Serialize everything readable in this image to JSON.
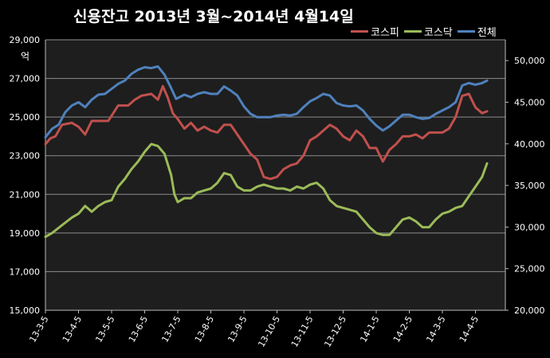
{
  "chart_data": {
    "type": "line",
    "title": "신용잔고 2013년 3월~2014년 4월14일",
    "unit_label": "억",
    "y_left": {
      "min": 15000,
      "max": 29000,
      "ticks": [
        "15,000",
        "17,000",
        "19,000",
        "21,000",
        "23,000",
        "25,000",
        "27,000",
        "29,000"
      ]
    },
    "y_right": {
      "min": 20000,
      "max": 52500,
      "ticks": [
        "20,000",
        "25,000",
        "30,000",
        "35,000",
        "40,000",
        "45,000",
        "50,000"
      ]
    },
    "x_ticks": [
      "13-3-5",
      "13-4-5",
      "13-5-5",
      "13-6-5",
      "13-7-5",
      "13-8-5",
      "13-9-5",
      "13-10-5",
      "13-11-5",
      "13-12-5",
      "14-1-5",
      "14-2-5",
      "14-3-5",
      "14-4-5"
    ],
    "grid": true,
    "legend_position": "top-right",
    "series": [
      {
        "name": "코스피",
        "axis": "left",
        "color": "#c0504d",
        "points": [
          [
            0,
            23600
          ],
          [
            0.15,
            23900
          ],
          [
            0.3,
            24000
          ],
          [
            0.5,
            24600
          ],
          [
            0.8,
            24700
          ],
          [
            1.0,
            24500
          ],
          [
            1.2,
            24100
          ],
          [
            1.4,
            24800
          ],
          [
            1.7,
            24800
          ],
          [
            1.9,
            24800
          ],
          [
            2.2,
            25600
          ],
          [
            2.5,
            25600
          ],
          [
            2.7,
            25900
          ],
          [
            2.9,
            26100
          ],
          [
            3.2,
            26200
          ],
          [
            3.4,
            25900
          ],
          [
            3.55,
            26600
          ],
          [
            3.7,
            26000
          ],
          [
            3.85,
            25200
          ],
          [
            4.0,
            24900
          ],
          [
            4.2,
            24400
          ],
          [
            4.4,
            24700
          ],
          [
            4.6,
            24300
          ],
          [
            4.8,
            24500
          ],
          [
            5.0,
            24300
          ],
          [
            5.2,
            24200
          ],
          [
            5.4,
            24600
          ],
          [
            5.6,
            24600
          ],
          [
            5.8,
            24100
          ],
          [
            6.0,
            23600
          ],
          [
            6.2,
            23100
          ],
          [
            6.4,
            22800
          ],
          [
            6.6,
            21900
          ],
          [
            6.8,
            21800
          ],
          [
            7.0,
            21900
          ],
          [
            7.2,
            22300
          ],
          [
            7.4,
            22500
          ],
          [
            7.6,
            22600
          ],
          [
            7.8,
            23000
          ],
          [
            8.0,
            23800
          ],
          [
            8.2,
            24000
          ],
          [
            8.4,
            24300
          ],
          [
            8.6,
            24600
          ],
          [
            8.8,
            24400
          ],
          [
            9.0,
            24000
          ],
          [
            9.2,
            23800
          ],
          [
            9.4,
            24300
          ],
          [
            9.6,
            24000
          ],
          [
            9.8,
            23400
          ],
          [
            10.0,
            23400
          ],
          [
            10.2,
            22700
          ],
          [
            10.4,
            23300
          ],
          [
            10.6,
            23600
          ],
          [
            10.8,
            24000
          ],
          [
            11.0,
            24000
          ],
          [
            11.2,
            24100
          ],
          [
            11.4,
            23900
          ],
          [
            11.6,
            24200
          ],
          [
            11.8,
            24200
          ],
          [
            12.0,
            24200
          ],
          [
            12.2,
            24400
          ],
          [
            12.4,
            25000
          ],
          [
            12.6,
            26100
          ],
          [
            12.8,
            26200
          ],
          [
            13.0,
            25500
          ],
          [
            13.2,
            25200
          ],
          [
            13.35,
            25300
          ]
        ]
      },
      {
        "name": "코스닥",
        "axis": "left",
        "color": "#9bbb59",
        "points": [
          [
            0,
            18800
          ],
          [
            0.2,
            19000
          ],
          [
            0.5,
            19400
          ],
          [
            0.8,
            19800
          ],
          [
            1.0,
            20000
          ],
          [
            1.2,
            20400
          ],
          [
            1.4,
            20100
          ],
          [
            1.6,
            20400
          ],
          [
            1.8,
            20600
          ],
          [
            2.0,
            20700
          ],
          [
            2.2,
            21400
          ],
          [
            2.4,
            21800
          ],
          [
            2.6,
            22300
          ],
          [
            2.8,
            22700
          ],
          [
            3.0,
            23200
          ],
          [
            3.2,
            23600
          ],
          [
            3.4,
            23500
          ],
          [
            3.6,
            23100
          ],
          [
            3.8,
            22000
          ],
          [
            3.9,
            21000
          ],
          [
            4.0,
            20600
          ],
          [
            4.2,
            20800
          ],
          [
            4.4,
            20800
          ],
          [
            4.6,
            21100
          ],
          [
            4.8,
            21200
          ],
          [
            5.0,
            21300
          ],
          [
            5.2,
            21600
          ],
          [
            5.4,
            22100
          ],
          [
            5.6,
            22000
          ],
          [
            5.8,
            21400
          ],
          [
            6.0,
            21200
          ],
          [
            6.2,
            21200
          ],
          [
            6.4,
            21400
          ],
          [
            6.6,
            21500
          ],
          [
            6.8,
            21400
          ],
          [
            7.0,
            21300
          ],
          [
            7.2,
            21300
          ],
          [
            7.4,
            21200
          ],
          [
            7.6,
            21400
          ],
          [
            7.8,
            21300
          ],
          [
            8.0,
            21500
          ],
          [
            8.2,
            21600
          ],
          [
            8.4,
            21300
          ],
          [
            8.6,
            20700
          ],
          [
            8.8,
            20400
          ],
          [
            9.0,
            20300
          ],
          [
            9.2,
            20200
          ],
          [
            9.4,
            20100
          ],
          [
            9.6,
            19700
          ],
          [
            9.8,
            19300
          ],
          [
            10.0,
            19000
          ],
          [
            10.2,
            18900
          ],
          [
            10.4,
            18900
          ],
          [
            10.6,
            19300
          ],
          [
            10.8,
            19700
          ],
          [
            11.0,
            19800
          ],
          [
            11.2,
            19600
          ],
          [
            11.4,
            19300
          ],
          [
            11.6,
            19300
          ],
          [
            11.8,
            19700
          ],
          [
            12.0,
            20000
          ],
          [
            12.2,
            20100
          ],
          [
            12.4,
            20300
          ],
          [
            12.6,
            20400
          ],
          [
            12.8,
            20900
          ],
          [
            13.0,
            21400
          ],
          [
            13.2,
            21900
          ],
          [
            13.35,
            22600
          ]
        ]
      },
      {
        "name": "전체",
        "axis": "right",
        "color": "#4f81bd",
        "points": [
          [
            0,
            40800
          ],
          [
            0.2,
            41800
          ],
          [
            0.4,
            42300
          ],
          [
            0.6,
            43800
          ],
          [
            0.8,
            44600
          ],
          [
            1.0,
            45000
          ],
          [
            1.2,
            44400
          ],
          [
            1.4,
            45300
          ],
          [
            1.6,
            45900
          ],
          [
            1.8,
            46000
          ],
          [
            2.0,
            46600
          ],
          [
            2.2,
            47200
          ],
          [
            2.4,
            47600
          ],
          [
            2.6,
            48400
          ],
          [
            2.8,
            48900
          ],
          [
            3.0,
            49200
          ],
          [
            3.2,
            49100
          ],
          [
            3.4,
            49300
          ],
          [
            3.6,
            48300
          ],
          [
            3.8,
            46700
          ],
          [
            3.95,
            45400
          ],
          [
            4.2,
            45900
          ],
          [
            4.4,
            45600
          ],
          [
            4.6,
            46000
          ],
          [
            4.8,
            46200
          ],
          [
            5.0,
            46000
          ],
          [
            5.2,
            46000
          ],
          [
            5.4,
            46900
          ],
          [
            5.6,
            46400
          ],
          [
            5.8,
            45800
          ],
          [
            6.0,
            44500
          ],
          [
            6.2,
            43600
          ],
          [
            6.4,
            43200
          ],
          [
            6.6,
            43200
          ],
          [
            6.8,
            43200
          ],
          [
            7.0,
            43400
          ],
          [
            7.2,
            43500
          ],
          [
            7.4,
            43400
          ],
          [
            7.6,
            43600
          ],
          [
            7.8,
            44400
          ],
          [
            8.0,
            45100
          ],
          [
            8.2,
            45500
          ],
          [
            8.4,
            46000
          ],
          [
            8.6,
            45800
          ],
          [
            8.8,
            44900
          ],
          [
            9.0,
            44600
          ],
          [
            9.2,
            44500
          ],
          [
            9.4,
            44600
          ],
          [
            9.6,
            44000
          ],
          [
            9.8,
            43000
          ],
          [
            10.0,
            42200
          ],
          [
            10.2,
            41600
          ],
          [
            10.4,
            42100
          ],
          [
            10.6,
            42800
          ],
          [
            10.8,
            43500
          ],
          [
            11.0,
            43500
          ],
          [
            11.2,
            43200
          ],
          [
            11.4,
            43000
          ],
          [
            11.6,
            43100
          ],
          [
            11.8,
            43600
          ],
          [
            12.0,
            44000
          ],
          [
            12.2,
            44400
          ],
          [
            12.4,
            45000
          ],
          [
            12.6,
            47000
          ],
          [
            12.8,
            47300
          ],
          [
            13.0,
            47100
          ],
          [
            13.2,
            47300
          ],
          [
            13.35,
            47600
          ]
        ]
      }
    ]
  }
}
